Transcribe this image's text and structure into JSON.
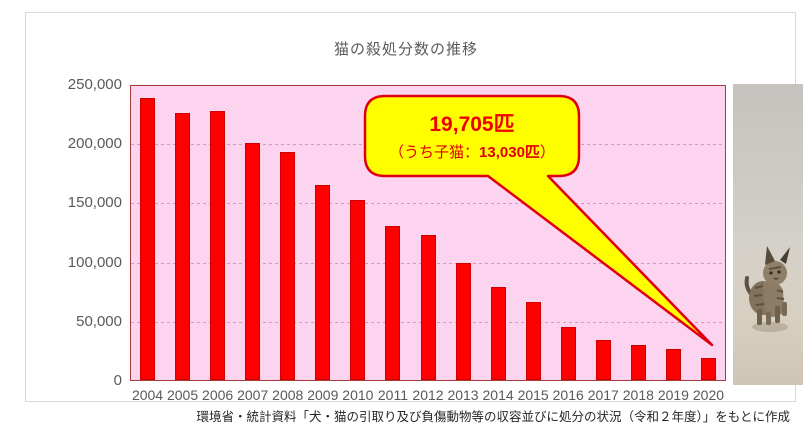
{
  "title": "猫の殺処分数の推移",
  "source_note": "環境省・統計資料「犬・猫の引取り及び負傷動物等の収容並びに処分の状況（令和２年度）」をもとに作成",
  "callout": {
    "main": "19,705匹",
    "sub_prefix": "（うち子猫：",
    "sub_bold": "13,030匹",
    "sub_suffix": "）"
  },
  "colors": {
    "bar": "#fe0000",
    "bar_border": "#cf0000",
    "plot_background": "#fcd4f0",
    "plot_border": "#a93a3a",
    "gridline": "#d995c8",
    "callout_fill": "#ffff00",
    "callout_border": "#e00012",
    "callout_text": "#ee0000",
    "axis_text": "#595959",
    "card_border": "#d9d9d9"
  },
  "chart_data": {
    "type": "bar",
    "title": "猫の殺処分数の推移",
    "categories": [
      "2004",
      "2005",
      "2006",
      "2007",
      "2008",
      "2009",
      "2010",
      "2011",
      "2012",
      "2013",
      "2014",
      "2015",
      "2016",
      "2017",
      "2018",
      "2019",
      "2020"
    ],
    "values": [
      238929,
      226702,
      228373,
      200760,
      193748,
      165771,
      152729,
      131136,
      123400,
      99671,
      79745,
      67091,
      45574,
      34854,
      30757,
      27108,
      19705
    ],
    "xlabel": "",
    "ylabel": "",
    "ylim": [
      0,
      250000
    ],
    "ytick_interval": 50000,
    "ytick_labels": [
      "0",
      "50,000",
      "100,000",
      "150,000",
      "200,000",
      "250,000"
    ],
    "grid": "horizontal-dashed",
    "legend": "none",
    "annotation": "2020年の値 19,705匹（うち子猫：13,030匹）を吹き出しで強調"
  }
}
